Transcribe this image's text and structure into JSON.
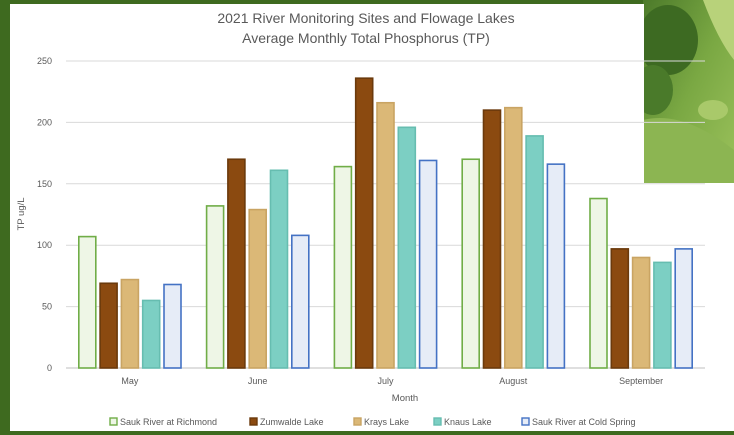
{
  "colors": {
    "background": "#3e6a1f",
    "panel": "#ffffff",
    "grid": "#d9d9d9",
    "text": "#595959"
  },
  "chart_data": {
    "type": "bar",
    "title": "2021 River Monitoring Sites and Flowage Lakes",
    "subtitle": "Average Monthly Total Phosphorus (TP)",
    "xlabel": "Month",
    "ylabel": "TP ug/L",
    "ylim": [
      0,
      250
    ],
    "yticks": [
      0,
      50,
      100,
      150,
      200,
      250
    ],
    "grid": true,
    "legend_position": "bottom",
    "categories": [
      "May",
      "June",
      "July",
      "August",
      "September"
    ],
    "series": [
      {
        "name": "Sauk River at Richmond",
        "values": [
          107,
          132,
          164,
          170,
          138
        ],
        "fill": "#eef6e6",
        "stroke": "#70ad47"
      },
      {
        "name": "Zumwalde Lake",
        "values": [
          69,
          170,
          236,
          210,
          97
        ],
        "fill": "#8b4a10",
        "stroke": "#6b3a0c"
      },
      {
        "name": "Krays Lake",
        "values": [
          72,
          129,
          216,
          212,
          90
        ],
        "fill": "#dbb877",
        "stroke": "#c9a463"
      },
      {
        "name": "Knaus Lake",
        "values": [
          55,
          161,
          196,
          189,
          86
        ],
        "fill": "#7ccfc3",
        "stroke": "#66bdb0"
      },
      {
        "name": "Sauk River at Cold Spring",
        "values": [
          68,
          108,
          169,
          166,
          97
        ],
        "fill": "#e6ecf7",
        "stroke": "#4472c4"
      }
    ]
  }
}
